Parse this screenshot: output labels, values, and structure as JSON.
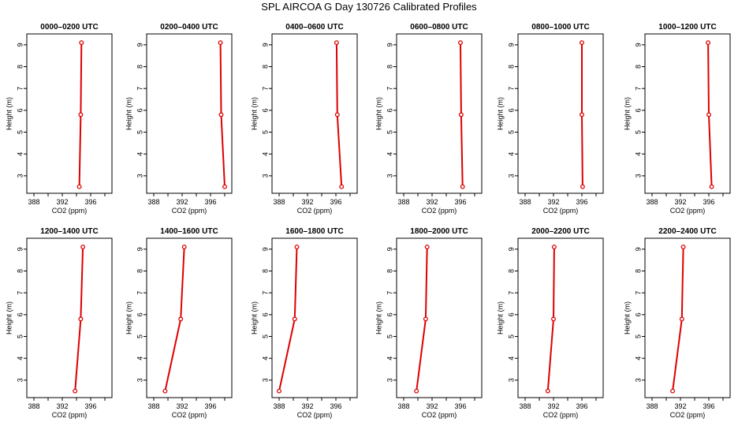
{
  "title": "SPL AIRCOA G  Day 130726  Calibrated Profiles",
  "chart_data": {
    "type": "line",
    "title": "SPL AIRCOA G  Day 130726  Calibrated Profiles",
    "xlabel": "CO2 (ppm)",
    "ylabel": "Height (m)",
    "xlim": [
      387,
      399
    ],
    "ylim": [
      2.2,
      9.5
    ],
    "xticks": [
      388,
      392,
      396
    ],
    "yticks": [
      3,
      4,
      5,
      6,
      7,
      8,
      9
    ],
    "color": "#dd0000",
    "panels": [
      {
        "title": "0000–0200 UTC",
        "x": [
          394.7,
          394.6,
          394.4
        ],
        "y": [
          9.1,
          5.8,
          2.5
        ]
      },
      {
        "title": "0200–0400 UTC",
        "x": [
          397.4,
          397.5,
          398.0
        ],
        "y": [
          9.1,
          5.8,
          2.5
        ]
      },
      {
        "title": "0400–0600 UTC",
        "x": [
          396.1,
          396.2,
          396.8
        ],
        "y": [
          9.1,
          5.8,
          2.5
        ]
      },
      {
        "title": "0600–0800 UTC",
        "x": [
          396.0,
          396.1,
          396.3
        ],
        "y": [
          9.1,
          5.8,
          2.5
        ]
      },
      {
        "title": "0800–1000 UTC",
        "x": [
          396.0,
          396.0,
          396.1
        ],
        "y": [
          9.1,
          5.8,
          2.5
        ]
      },
      {
        "title": "1000–1200 UTC",
        "x": [
          395.9,
          396.0,
          396.4
        ],
        "y": [
          9.1,
          5.8,
          2.5
        ]
      },
      {
        "title": "1200–1400 UTC",
        "x": [
          394.9,
          394.6,
          393.8
        ],
        "y": [
          9.1,
          5.8,
          2.5
        ]
      },
      {
        "title": "1400–1600 UTC",
        "x": [
          392.3,
          391.8,
          389.6
        ],
        "y": [
          9.1,
          5.8,
          2.5
        ]
      },
      {
        "title": "1600–1800 UTC",
        "x": [
          390.5,
          390.2,
          388.0
        ],
        "y": [
          9.1,
          5.8,
          2.5
        ]
      },
      {
        "title": "1800–2000 UTC",
        "x": [
          391.3,
          391.1,
          389.8
        ],
        "y": [
          9.1,
          5.8,
          2.5
        ]
      },
      {
        "title": "2000–2200 UTC",
        "x": [
          392.1,
          392.0,
          391.2
        ],
        "y": [
          9.1,
          5.8,
          2.5
        ]
      },
      {
        "title": "2200–2400 UTC",
        "x": [
          392.4,
          392.2,
          390.9
        ],
        "y": [
          9.1,
          5.8,
          2.5
        ]
      }
    ]
  }
}
